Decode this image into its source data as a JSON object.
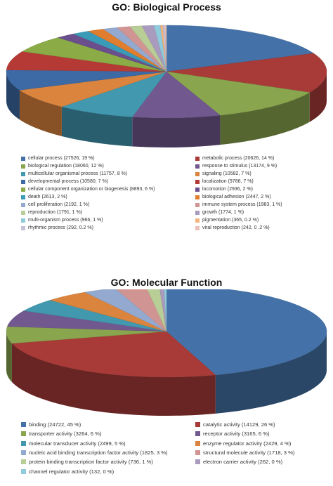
{
  "charts": [
    {
      "id": "bp",
      "title": "GO: Biological Process",
      "type": "pie",
      "items": [
        {
          "label": "cellular process (27526, 19 %)",
          "value": 27526,
          "color": "#4472A8"
        },
        {
          "label": "metabolic process (20626, 14 %)",
          "value": 20626,
          "color": "#A83B38"
        },
        {
          "label": "biological regulation (18060, 12 %)",
          "value": 18060,
          "color": "#89A54E"
        },
        {
          "label": "response to stimulus (13174, 9 %)",
          "value": 13174,
          "color": "#71588F"
        },
        {
          "label": "multicellular organismal process (11757, 8 %)",
          "value": 11757,
          "color": "#4198AF"
        },
        {
          "label": "signaling (10582, 7 %)",
          "value": 10582,
          "color": "#DB843D"
        },
        {
          "label": "developmental process (10580, 7 %)",
          "value": 10580,
          "color": "#3D6AA5"
        },
        {
          "label": "localization (9786, 7 %)",
          "value": 9786,
          "color": "#B53A36"
        },
        {
          "label": "cellular component organization or biogenesis (8893, 6 %)",
          "value": 8893,
          "color": "#8AAB46"
        },
        {
          "label": "locomotion (2936, 2 %)",
          "value": 2936,
          "color": "#6B4F8C"
        },
        {
          "label": "death (2613, 2 %)",
          "value": 2613,
          "color": "#3A9BB8"
        },
        {
          "label": "biological adhesion (2447, 2 %)",
          "value": 2447,
          "color": "#E07D2E"
        },
        {
          "label": "cell proliferation (2192, 1 %)",
          "value": 2192,
          "color": "#93A9CF"
        },
        {
          "label": "immune system process (1983, 1 %)",
          "value": 1983,
          "color": "#D09493"
        },
        {
          "label": "reproduction (1791, 1 %)",
          "value": 1791,
          "color": "#B9CD96"
        },
        {
          "label": "growth (1774, 1 %)",
          "value": 1774,
          "color": "#A99BBD"
        },
        {
          "label": "multi-organism process (966, 1 %)",
          "value": 966,
          "color": "#8FCBDD"
        },
        {
          "label": "pigmentation (365, 0.2 %)",
          "value": 365,
          "color": "#F5B37E"
        },
        {
          "label": "rhythmic process (292, 0.2  %)",
          "value": 292,
          "color": "#C5C2DA"
        },
        {
          "label": "viral reproduction (242, 0 .2 %)",
          "value": 242,
          "color": "#E8C1B8"
        }
      ]
    },
    {
      "id": "mf",
      "title": "GO: Molecular Function",
      "type": "pie",
      "items": [
        {
          "label": "binding (24722, 45 %)",
          "value": 24722,
          "color": "#4472A8"
        },
        {
          "label": "catalytic activity (14129, 26 %)",
          "value": 14129,
          "color": "#A83B38"
        },
        {
          "label": "transporter activity (3264, 6 %)",
          "value": 3264,
          "color": "#89A54E"
        },
        {
          "label": "receptor activity (3165, 6 %)",
          "value": 3165,
          "color": "#71588F"
        },
        {
          "label": "molecular transducer activity (2499, 5 %)",
          "value": 2499,
          "color": "#4198AF"
        },
        {
          "label": "enzyme regulator activity (2429, 4 %)",
          "value": 2429,
          "color": "#DB843D"
        },
        {
          "label": "nucleic acid binding transcription factor activity (1825, 3 %)",
          "value": 1825,
          "color": "#93A9CF"
        },
        {
          "label": "structural molecule activity (1718, 3 %)",
          "value": 1718,
          "color": "#D09493"
        },
        {
          "label": "protein binding transcription factor activity (736, 1 %)",
          "value": 736,
          "color": "#B9CD96"
        },
        {
          "label": "electron carrier activity (262, 0 %)",
          "value": 262,
          "color": "#A99BBD"
        },
        {
          "label": "channel regulator activity (132, 0 %)",
          "value": 132,
          "color": "#8FCBDD"
        }
      ]
    }
  ]
}
